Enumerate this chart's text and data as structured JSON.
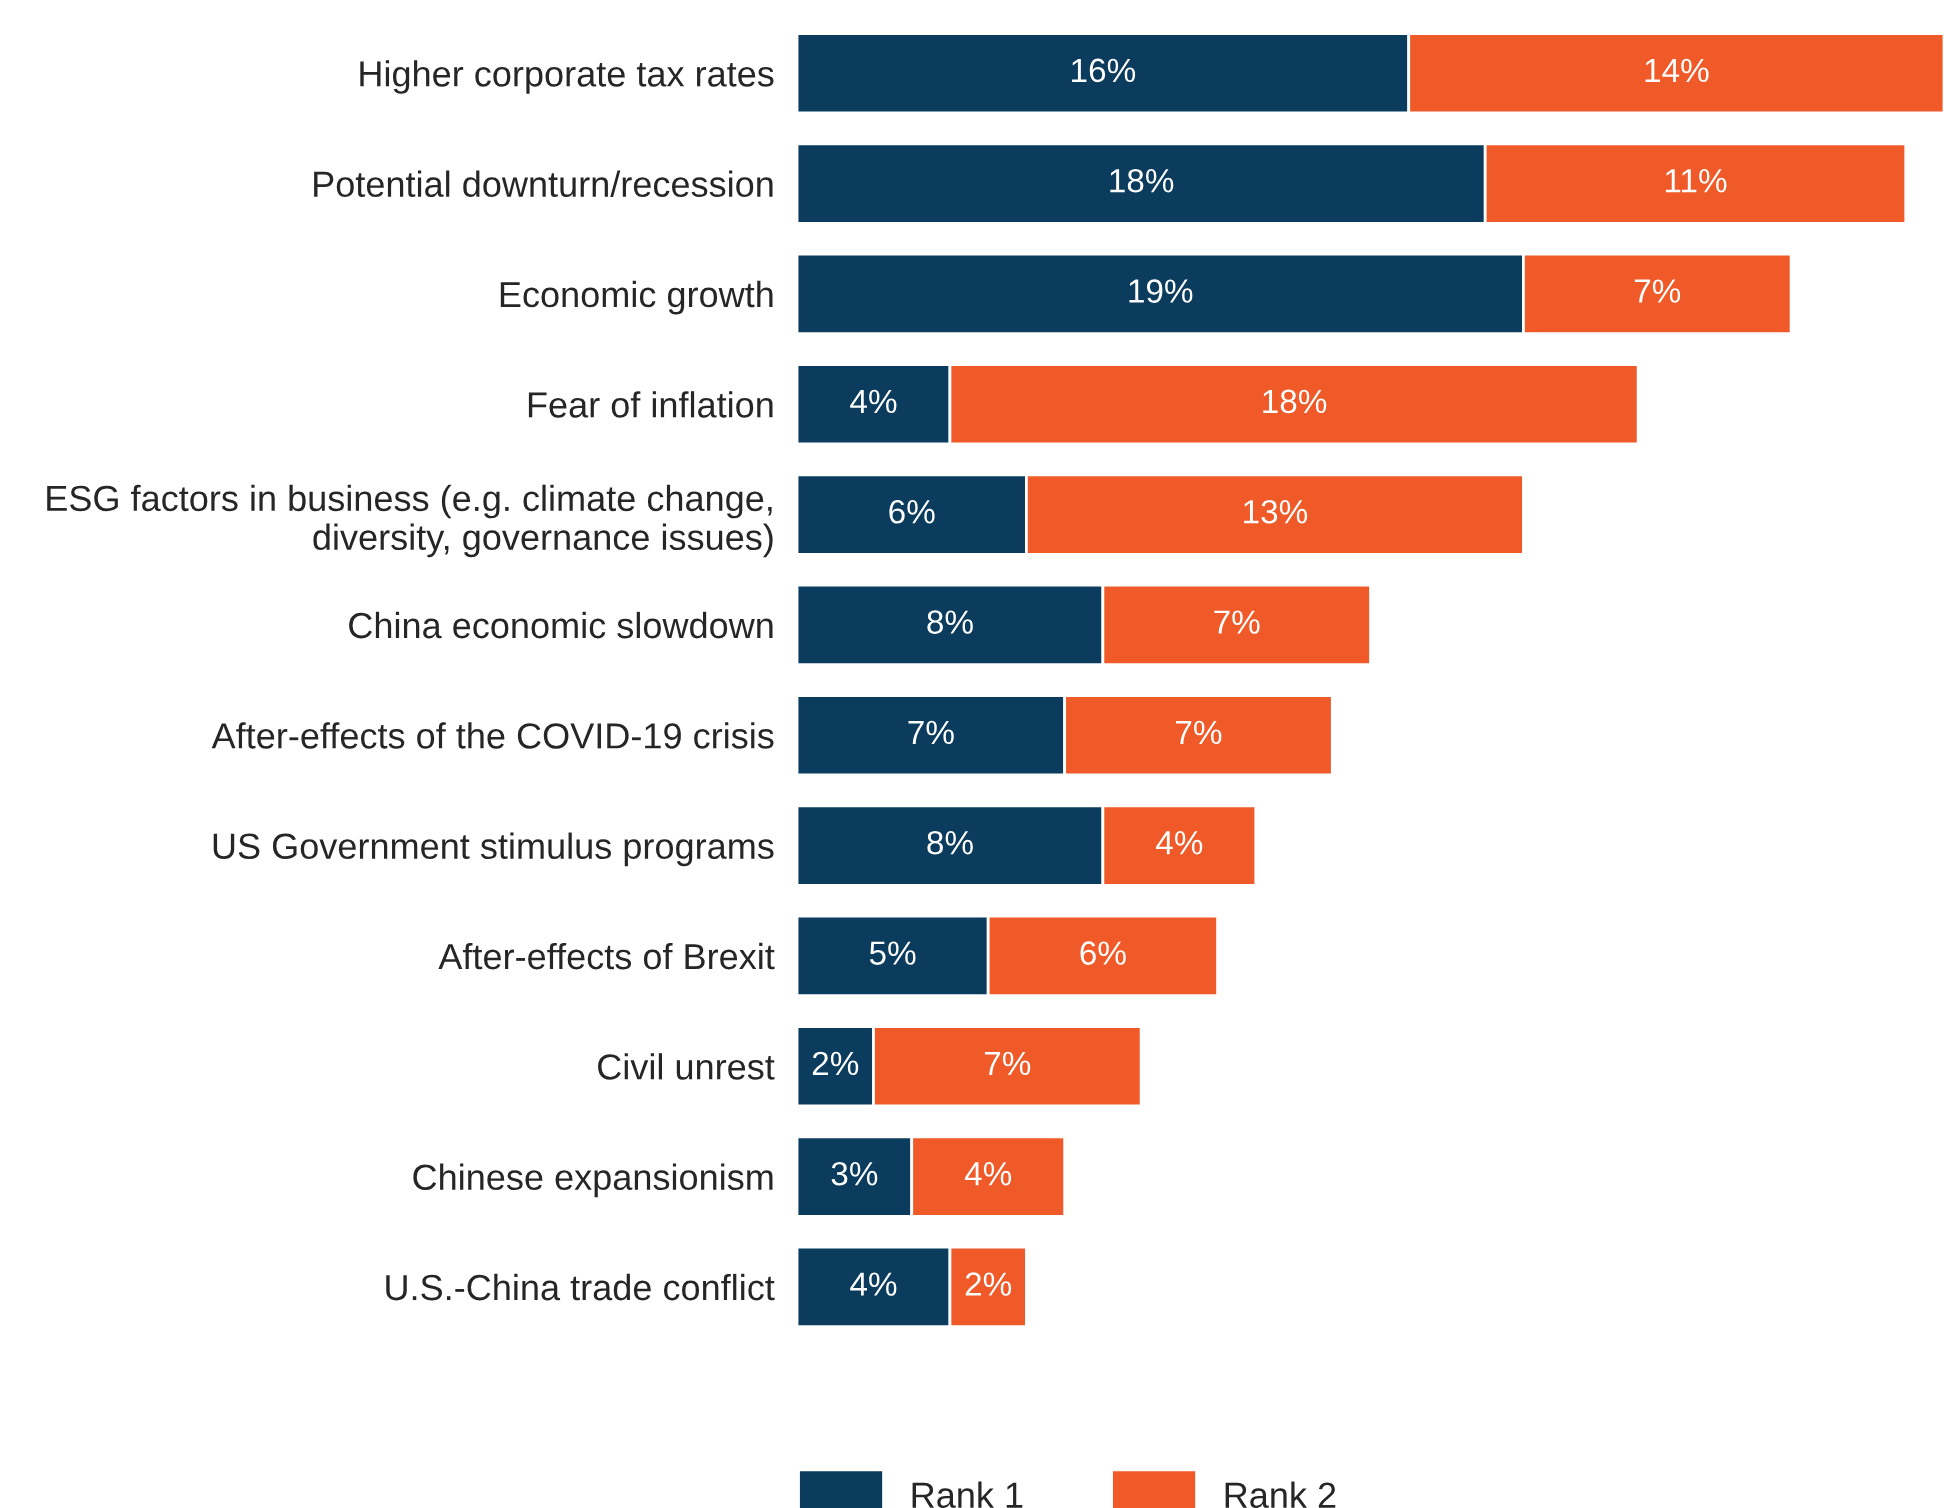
{
  "chart_data": {
    "type": "bar",
    "orientation": "horizontal",
    "stacked": true,
    "legend": "bottom",
    "grid": false,
    "categories": [
      "Higher corporate tax rates",
      "Potential downturn/recession",
      "Economic growth",
      "Fear of inflation",
      "ESG factors in business (e.g. climate change,\ndiversity, governance issues)",
      "China economic slowdown",
      "After-effects of the COVID-19 crisis",
      "US Government stimulus programs",
      "After-effects of Brexit",
      "Civil unrest",
      "Chinese expansionism",
      "U.S.-China trade conflict"
    ],
    "series": [
      {
        "name": "Rank 1",
        "color": "#0b3c5d",
        "values": [
          16,
          18,
          19,
          4,
          6,
          8,
          7,
          8,
          5,
          2,
          3,
          4
        ],
        "value_labels": [
          "16%",
          "18%",
          "19%",
          "4%",
          "6%",
          "8%",
          "7%",
          "8%",
          "5%",
          "2%",
          "3%",
          "4%"
        ]
      },
      {
        "name": "Rank 2",
        "color": "#ef5a28",
        "values": [
          14,
          11,
          7,
          18,
          13,
          7,
          7,
          4,
          6,
          7,
          4,
          2
        ],
        "value_labels": [
          "14%",
          "11%",
          "7%",
          "18%",
          "13%",
          "7%",
          "7%",
          "4%",
          "6%",
          "7%",
          "4%",
          "2%"
        ]
      }
    ]
  }
}
